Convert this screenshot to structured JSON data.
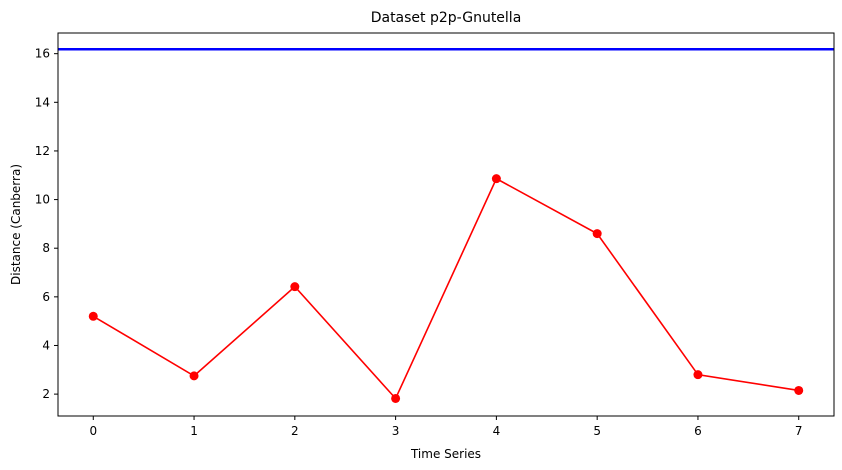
{
  "chart_data": {
    "type": "line",
    "title": "Dataset p2p-Gnutella",
    "xlabel": "Time Series",
    "ylabel": "Distance (Canberra)",
    "x": [
      0,
      1,
      2,
      3,
      4,
      5,
      6,
      7
    ],
    "series": [
      {
        "values": [
          5.2,
          2.75,
          6.42,
          1.82,
          10.86,
          8.6,
          2.8,
          2.15
        ],
        "color": "#ff0000",
        "marker": "circle"
      }
    ],
    "reference_line": {
      "y": 16.18,
      "color": "#0000ff"
    },
    "xlim": [
      -0.35,
      7.35
    ],
    "ylim": [
      1.1,
      16.85
    ],
    "xticks": [
      0,
      1,
      2,
      3,
      4,
      5,
      6,
      7
    ],
    "yticks": [
      2,
      4,
      6,
      8,
      10,
      12,
      14,
      16
    ],
    "grid": false,
    "legend": "none"
  }
}
